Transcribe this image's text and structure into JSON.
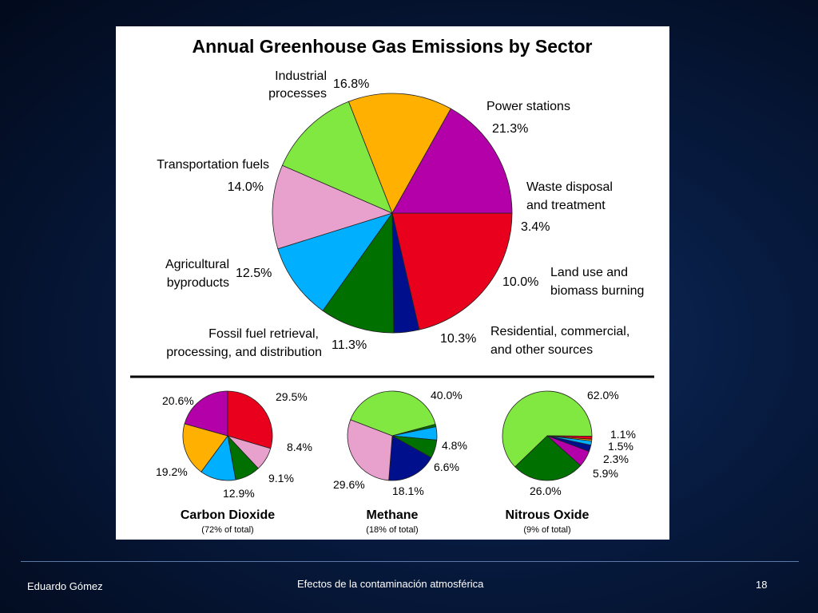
{
  "slide": {
    "author": "Eduardo Gómez",
    "title": "Efectos de la contaminación atmosférica",
    "page_number": "18"
  },
  "chart_data": [
    {
      "type": "pie",
      "title": "Annual Greenhouse Gas Emissions by Sector",
      "slices": [
        {
          "label": "Power stations",
          "value": 21.3,
          "value_label": "21.3%",
          "color": "#e8001c"
        },
        {
          "label": "Waste disposal and treatment",
          "value": 3.4,
          "value_label": "3.4%",
          "color": "#000f8c"
        },
        {
          "label": "Land use and biomass burning",
          "value": 10.0,
          "value_label": "10.0%",
          "color": "#007000"
        },
        {
          "label": "Residential, commercial, and other sources",
          "value": 10.3,
          "value_label": "10.3%",
          "color": "#00b0ff"
        },
        {
          "label": "Fossil fuel retrieval, processing, and distribution",
          "value": 11.3,
          "value_label": "11.3%",
          "color": "#e8a0cc"
        },
        {
          "label": "Agricultural byproducts",
          "value": 12.5,
          "value_label": "12.5%",
          "color": "#80e840"
        },
        {
          "label": "Transportation fuels",
          "value": 14.0,
          "value_label": "14.0%",
          "color": "#ffb000"
        },
        {
          "label": "Industrial processes",
          "value": 16.8,
          "value_label": "16.8%",
          "color": "#b400a8"
        }
      ]
    },
    {
      "type": "pie",
      "title": "Carbon Dioxide",
      "subtitle": "(72% of total)",
      "slices": [
        {
          "value": 29.5,
          "value_label": "29.5%",
          "color": "#e8001c"
        },
        {
          "value": 0.0,
          "value_label": "",
          "color": "#000f8c"
        },
        {
          "value": 8.4,
          "value_label": "8.4%",
          "color": "#e8a0cc"
        },
        {
          "value": 9.1,
          "value_label": "9.1%",
          "color": "#007000"
        },
        {
          "value": 12.9,
          "value_label": "12.9%",
          "color": "#00b0ff"
        },
        {
          "value": 19.2,
          "value_label": "19.2%",
          "color": "#ffb000"
        },
        {
          "value": 20.6,
          "value_label": "20.6%",
          "color": "#b400a8"
        }
      ]
    },
    {
      "type": "pie",
      "title": "Methane",
      "subtitle": "(18% of total)",
      "slices": [
        {
          "value": 40.0,
          "value_label": "40.0%",
          "color": "#80e840"
        },
        {
          "value": 0.9,
          "value_label": "",
          "color": "#007000"
        },
        {
          "value": 4.8,
          "value_label": "4.8%",
          "color": "#00b0ff"
        },
        {
          "value": 6.6,
          "value_label": "6.6%",
          "color": "#007000"
        },
        {
          "value": 18.1,
          "value_label": "18.1%",
          "color": "#000f8c"
        },
        {
          "value": 29.6,
          "value_label": "29.6%",
          "color": "#e8a0cc"
        }
      ]
    },
    {
      "type": "pie",
      "title": "Nitrous Oxide",
      "subtitle": "(9% of total)",
      "slices": [
        {
          "value": 62.0,
          "value_label": "62.0%",
          "color": "#80e840"
        },
        {
          "value": 1.1,
          "value_label": "1.1%",
          "color": "#e8001c"
        },
        {
          "value": 0.6,
          "value_label": "",
          "color": "#ffb000"
        },
        {
          "value": 1.5,
          "value_label": "1.5%",
          "color": "#00b0ff"
        },
        {
          "value": 2.3,
          "value_label": "2.3%",
          "color": "#000f8c"
        },
        {
          "value": 5.9,
          "value_label": "5.9%",
          "color": "#b400a8"
        },
        {
          "value": 26.0,
          "value_label": "26.0%",
          "color": "#007000"
        }
      ]
    }
  ]
}
